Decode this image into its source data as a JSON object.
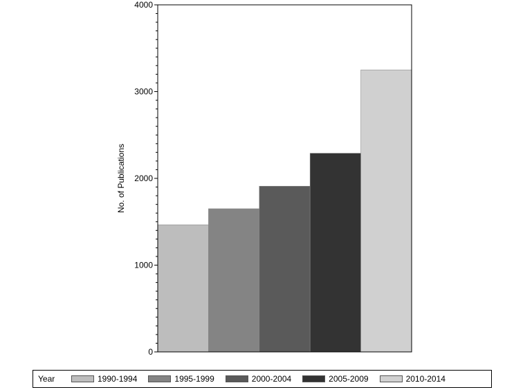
{
  "chart_data": {
    "type": "bar",
    "title": "",
    "xlabel": "",
    "ylabel": "No. of Publications",
    "ylim": [
      0,
      4000
    ],
    "yticks": [
      0,
      1000,
      2000,
      3000,
      4000
    ],
    "grid": false,
    "legend_title": "Year",
    "legend_position": "bottom",
    "categories": [
      "1990-1994",
      "1995-1999",
      "2000-2004",
      "2005-2009",
      "2010-2014"
    ],
    "values": [
      1465,
      1650,
      1910,
      2290,
      3250
    ],
    "colors": [
      "#bdbdbd",
      "#848484",
      "#5a5a5a",
      "#333333",
      "#d0d0d0"
    ]
  }
}
